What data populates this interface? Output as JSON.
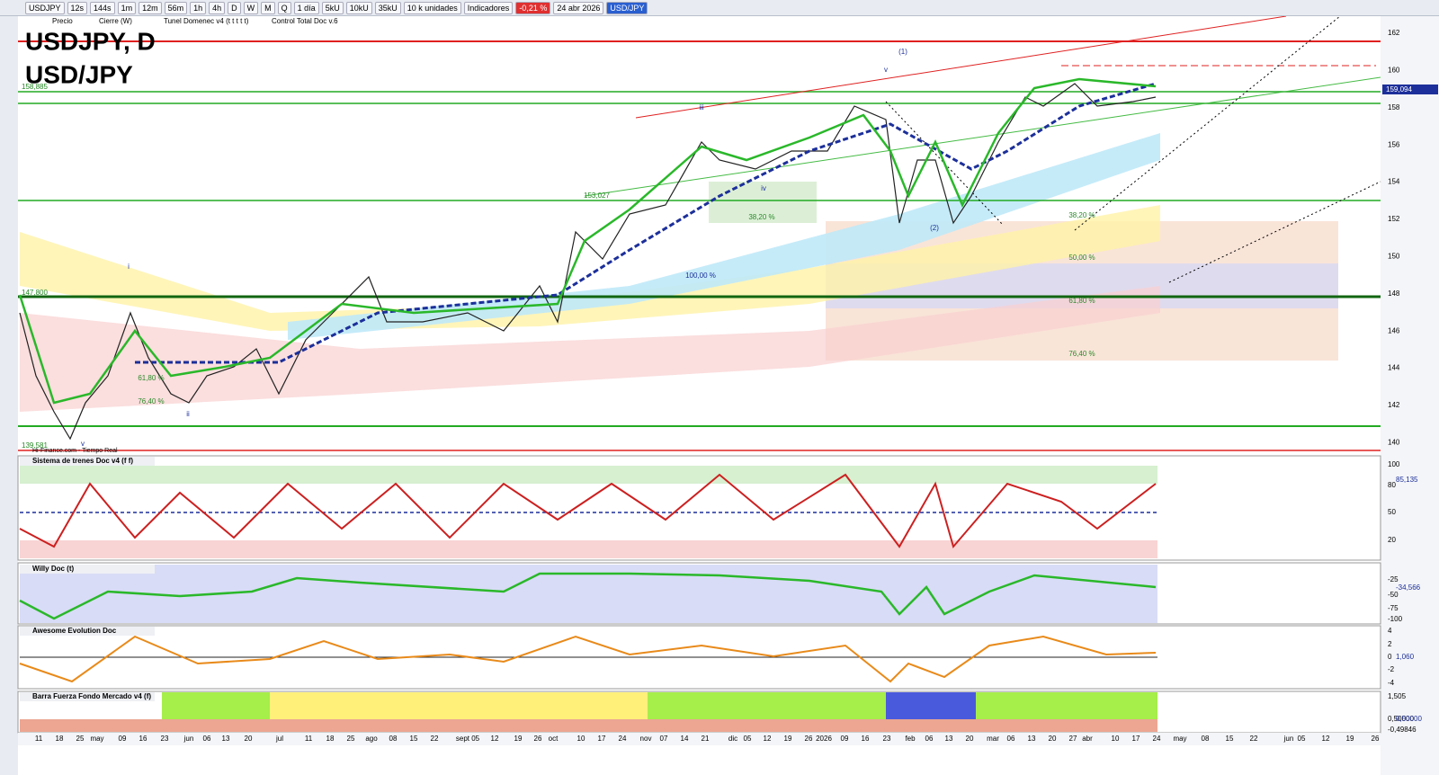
{
  "toolbar": {
    "symbol": "USDJPY",
    "buttons": [
      "12s",
      "144s",
      "1m",
      "12m",
      "56m",
      "1h",
      "4h",
      "D",
      "W",
      "M",
      "Q",
      "1 día",
      "5kU",
      "10kU",
      "35kU",
      "10 k unidades",
      "Indicadores"
    ],
    "change": "-0,21 %",
    "date": "24 abr 2026",
    "pair": "USD/JPY"
  },
  "legend": [
    "Precio",
    "Cierre (W)",
    "Tunel Domenec v4 (t t t t t)",
    "Control Total Doc v.6"
  ],
  "chart": {
    "title": "USDJPY, D",
    "subtitle": "USD/JPY",
    "price_axis": [
      "162",
      "160",
      "158",
      "156",
      "154",
      "152",
      "150",
      "148",
      "146",
      "144",
      "142",
      "140"
    ],
    "last_price": "159,094",
    "level_tags": [
      "158,885",
      "153,027",
      "147,800",
      "139,581"
    ],
    "annotations": [
      "(1)",
      "v",
      "iii",
      "iv",
      "(2)",
      "i",
      "ii",
      "v",
      "100,00 %",
      "61,80 %",
      "76,40 %",
      "38,20 %",
      "38,20 %",
      "50,00 %",
      "61,80 %",
      "76,40 %"
    ],
    "source": "Hi-Finance.com - Tiempo Real"
  },
  "panels": [
    {
      "title": "Sistema de trenes Doc v4 (f f)",
      "axis": [
        "100",
        "80",
        "50",
        "20"
      ],
      "tag": "85,135"
    },
    {
      "title": "Willy Doc (t)",
      "axis": [
        "-25",
        "-50",
        "-75",
        "-100"
      ],
      "tag": "-34,566"
    },
    {
      "title": "Awesome Evolution Doc",
      "axis": [
        "4",
        "2",
        "0",
        "-2",
        "-4"
      ],
      "tag": "1,060"
    },
    {
      "title": "Barra Fuerza Fondo Mercado v4 (f)",
      "axis": [
        "1,505",
        "0,50000",
        "-0,49846"
      ],
      "tag": "0,50000"
    }
  ],
  "date_axis": [
    "11",
    "18",
    "25",
    "may",
    "09",
    "16",
    "23",
    "jun",
    "06",
    "13",
    "20",
    "jul",
    "11",
    "18",
    "25",
    "ago",
    "08",
    "15",
    "22",
    "sept 05",
    "12",
    "19",
    "26",
    "oct",
    "10",
    "17",
    "24",
    "nov",
    "07",
    "14",
    "21",
    "dic",
    "05",
    "12",
    "19",
    "26",
    "2026",
    "09",
    "16",
    "23",
    "feb",
    "06",
    "13",
    "20",
    "mar",
    "06",
    "13",
    "20",
    "27",
    "abr",
    "10",
    "17",
    "24",
    "may",
    "08",
    "15",
    "22",
    "jun",
    "05",
    "12",
    "19",
    "26"
  ]
}
